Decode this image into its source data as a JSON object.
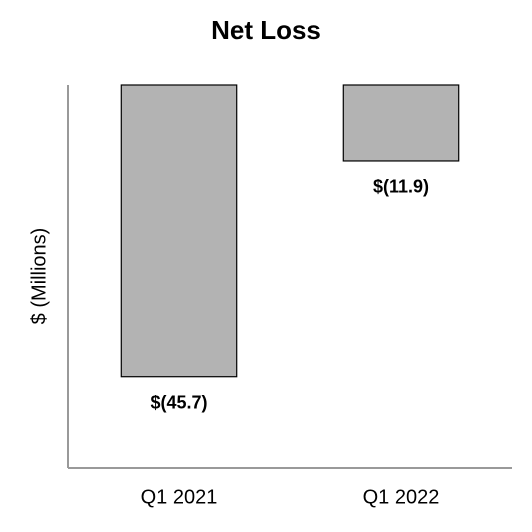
{
  "chart_data": {
    "type": "bar",
    "title": "Net Loss",
    "y_label": "$ (Millions)",
    "categories": [
      "Q1 2021",
      "Q1 2022"
    ],
    "values": [
      -45.7,
      -11.9
    ],
    "value_labels": [
      "$(45.7)",
      "$(11.9)"
    ],
    "color": "#b3b3b3",
    "ylim": [
      -60,
      0
    ]
  }
}
